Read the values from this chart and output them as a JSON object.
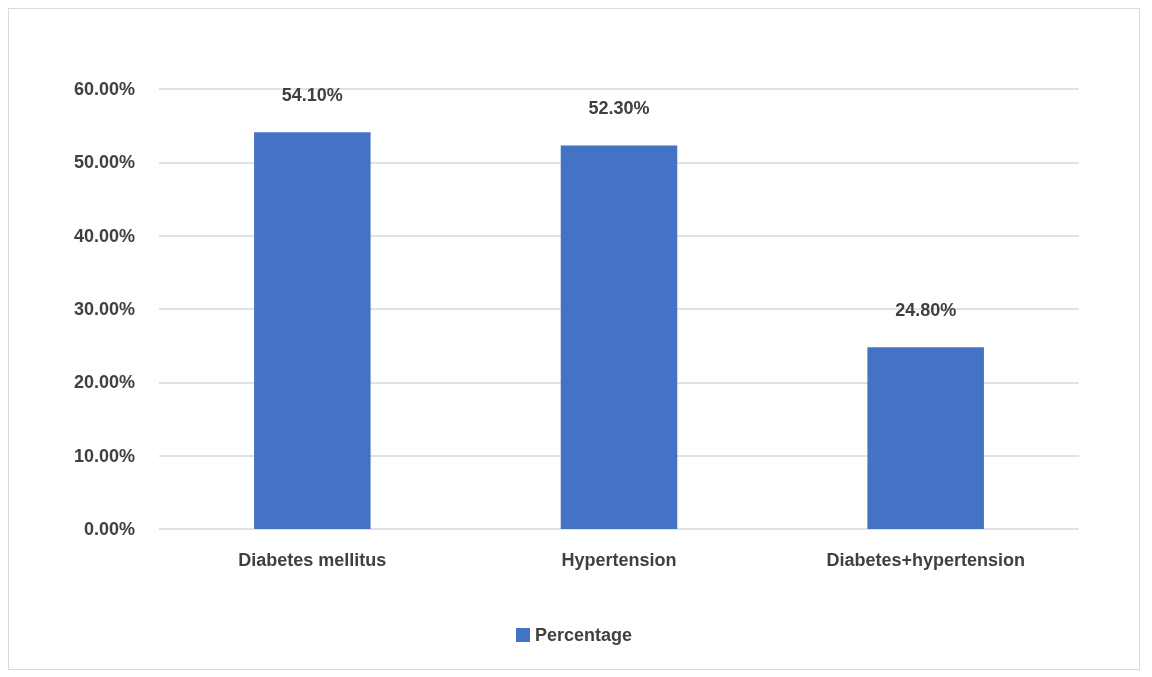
{
  "chart_data": {
    "type": "bar",
    "categories": [
      "Diabetes mellitus",
      "Hypertension",
      "Diabetes+hypertension"
    ],
    "series": [
      {
        "name": "Percentage",
        "color": "#4472c4",
        "values": [
          54.1,
          52.3,
          24.8
        ],
        "value_labels": [
          "54.10%",
          "52.30%",
          "24.80%"
        ]
      }
    ],
    "ylim": [
      0,
      60
    ],
    "yticks": [
      {
        "value": 0,
        "label": "0.00%"
      },
      {
        "value": 10,
        "label": "10.00%"
      },
      {
        "value": 20,
        "label": "20.00%"
      },
      {
        "value": 30,
        "label": "30.00%"
      },
      {
        "value": 40,
        "label": "40.00%"
      },
      {
        "value": 50,
        "label": "50.00%"
      },
      {
        "value": 60,
        "label": "60.00%"
      }
    ],
    "grid": "y",
    "legend": "bottom"
  }
}
